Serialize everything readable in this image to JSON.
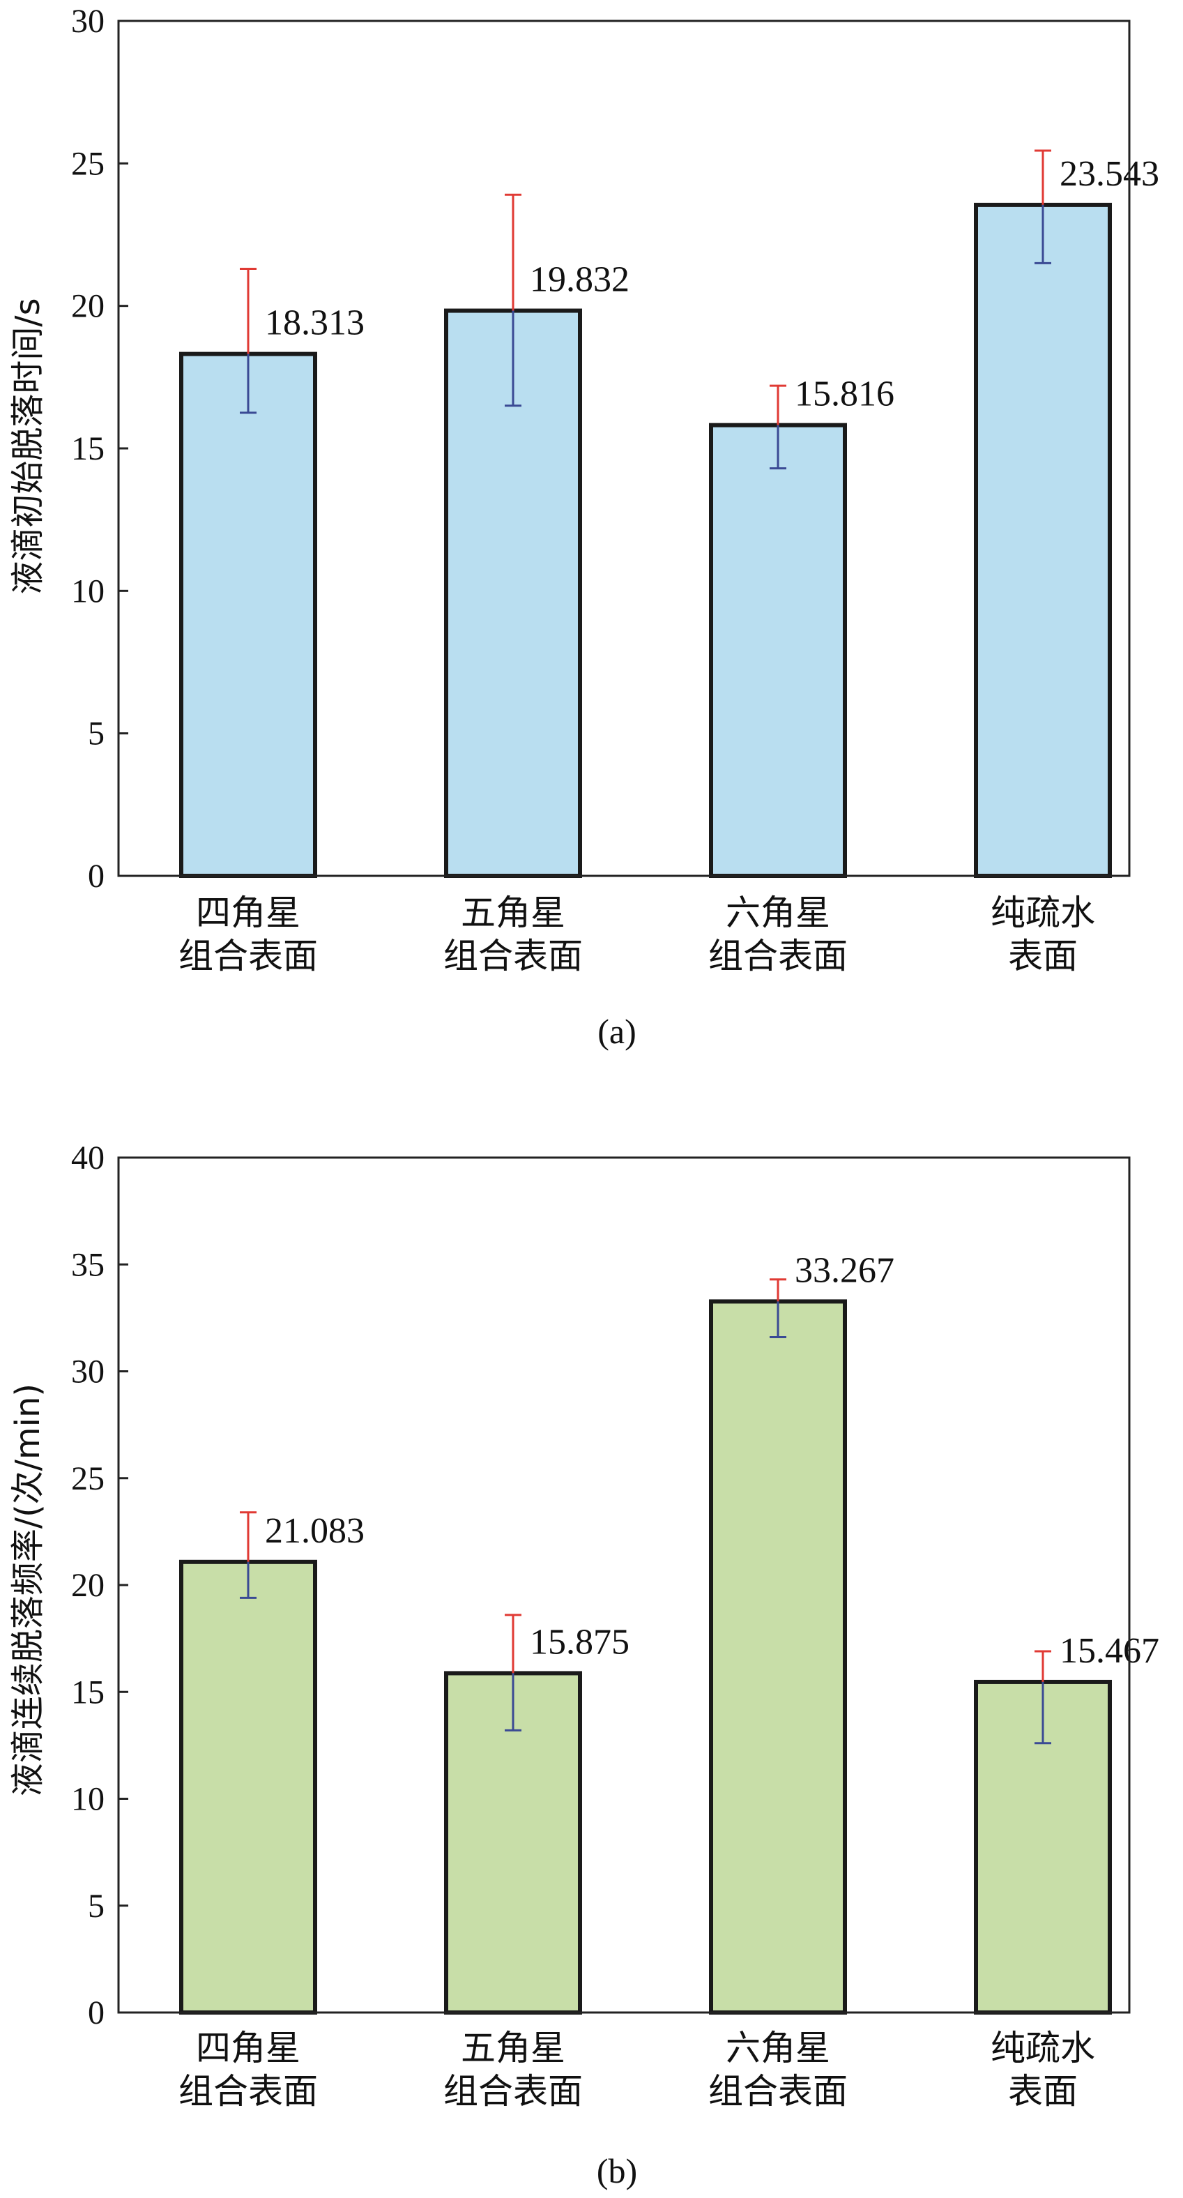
{
  "chart_data": [
    {
      "type": "bar",
      "caption": "(a)",
      "ylabel": "液滴初始脱落时间/s",
      "ylim": [
        0,
        30
      ],
      "yticks": [
        0,
        5,
        10,
        15,
        20,
        25,
        30
      ],
      "categories": [
        [
          "四角星",
          "组合表面"
        ],
        [
          "五角星",
          "组合表面"
        ],
        [
          "六角星",
          "组合表面"
        ],
        [
          "纯疏水",
          "表面"
        ]
      ],
      "values": [
        18.313,
        19.832,
        15.816,
        23.543
      ],
      "value_labels": [
        "18.313",
        "19.832",
        "15.816",
        "23.543"
      ],
      "error_upper": [
        21.3,
        23.9,
        17.2,
        25.45
      ],
      "error_lower": [
        16.25,
        16.5,
        14.3,
        21.5
      ],
      "bar_color": "#b9def0",
      "grid": false
    },
    {
      "type": "bar",
      "caption": "(b)",
      "ylabel": "液滴连续脱落频率/(次/min)",
      "ylim": [
        0,
        40
      ],
      "yticks": [
        0,
        5,
        10,
        15,
        20,
        25,
        30,
        35,
        40
      ],
      "categories": [
        [
          "四角星",
          "组合表面"
        ],
        [
          "五角星",
          "组合表面"
        ],
        [
          "六角星",
          "组合表面"
        ],
        [
          "纯疏水",
          "表面"
        ]
      ],
      "values": [
        21.083,
        15.875,
        33.267,
        15.467
      ],
      "value_labels": [
        "21.083",
        "15.875",
        "33.267",
        "15.467"
      ],
      "error_upper": [
        23.4,
        18.6,
        34.3,
        16.9
      ],
      "error_lower": [
        19.4,
        13.2,
        31.6,
        12.6
      ],
      "bar_color": "#c8dea8",
      "grid": false
    }
  ],
  "colors": {
    "error_up": "#e03a34",
    "error_down": "#3a4a94",
    "outline": "#1a1a1a"
  }
}
